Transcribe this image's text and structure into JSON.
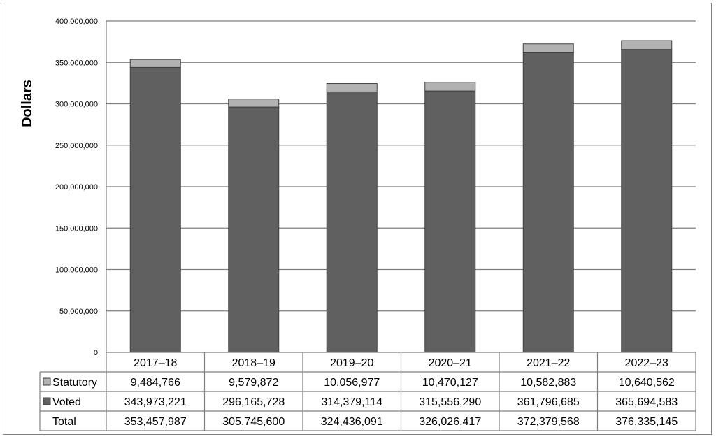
{
  "chart_data": {
    "type": "bar",
    "stacked": true,
    "categories": [
      "2017–18",
      "2018–19",
      "2019–20",
      "2020–21",
      "2021–22",
      "2022–23"
    ],
    "series": [
      {
        "name": "Statutory",
        "values": [
          9484766,
          9579872,
          10056977,
          10470127,
          10582883,
          10640562
        ],
        "color": "#b2b2b2"
      },
      {
        "name": "Voted",
        "values": [
          343973221,
          296165728,
          314379114,
          315556290,
          361796685,
          365694583
        ],
        "color": "#606060"
      }
    ],
    "totals_label": "Total",
    "totals": [
      353457987,
      305745600,
      324436091,
      326026417,
      372379568,
      376335145
    ],
    "ylabel": "Dollars",
    "ylim": [
      0,
      400000000
    ],
    "yticks": [
      0,
      50000000,
      100000000,
      150000000,
      200000000,
      250000000,
      300000000,
      350000000,
      400000000
    ],
    "grid": true,
    "legend": "data-table"
  }
}
